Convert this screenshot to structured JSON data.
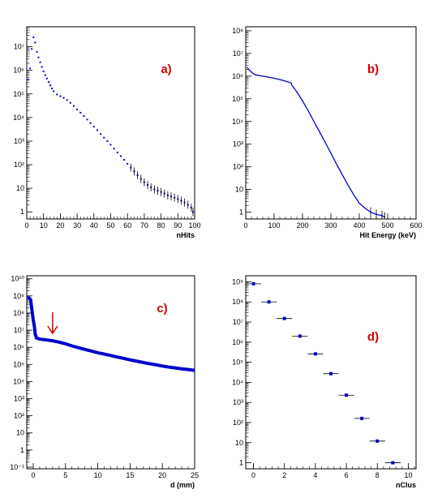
{
  "colors": {
    "marker": "#0000cc",
    "frame": "#000000",
    "label": "#d40000",
    "arrow": "#d40000",
    "error": "#000000"
  },
  "chart_data": [
    {
      "id": "a",
      "type": "scatter",
      "panel_label": "a)",
      "xlabel": "nHits",
      "ylabel": "",
      "xlim": [
        0,
        100
      ],
      "ylim": [
        0.5,
        70000000
      ],
      "yscale": "log",
      "xticks": [
        0,
        10,
        20,
        30,
        40,
        50,
        60,
        70,
        80,
        90,
        100
      ],
      "yticks": [
        1,
        10,
        100,
        1000,
        10000,
        100000,
        1000000,
        10000000
      ],
      "ytick_labels": [
        "1",
        "10",
        "10²",
        "10³",
        "10⁴",
        "10⁵",
        "10⁶",
        "10⁷"
      ],
      "series": [
        {
          "x": [
            1,
            2,
            3,
            4,
            5,
            6,
            7,
            8,
            9,
            10,
            11,
            12,
            13,
            14,
            15,
            16,
            18,
            20,
            22,
            24,
            26,
            28,
            30,
            32,
            34,
            36,
            38,
            40,
            42,
            44,
            46,
            48,
            50,
            52,
            54,
            56,
            58,
            60,
            62,
            64,
            66,
            68,
            70,
            72,
            74,
            76,
            78,
            80,
            82,
            84,
            86,
            88,
            90,
            92,
            94,
            96,
            98,
            99
          ],
          "y": [
            400000,
            1200000,
            8000000,
            25000000,
            15000000,
            6000000,
            3500000,
            2200000,
            1400000,
            900000,
            620000,
            450000,
            320000,
            230000,
            170000,
            130000,
            95000,
            80000,
            68000,
            55000,
            42000,
            31000,
            22000,
            16000,
            11500,
            8200,
            5800,
            4100,
            2900,
            2000,
            1400,
            1000,
            700,
            480,
            330,
            230,
            160,
            110,
            75,
            52,
            36,
            25,
            18,
            14,
            11,
            9,
            8,
            7,
            6,
            5,
            4.5,
            4,
            3.5,
            3,
            2.5,
            2,
            1.5,
            1
          ]
        }
      ]
    },
    {
      "id": "b",
      "type": "scatter",
      "panel_label": "b)",
      "xlabel": "Hit Energy (keV)",
      "ylabel": "",
      "xlim": [
        0,
        600
      ],
      "ylim": [
        0.5,
        150000000
      ],
      "yscale": "log",
      "xticks": [
        0,
        100,
        200,
        300,
        400,
        500,
        600
      ],
      "yticks": [
        1,
        10,
        100,
        1000,
        10000,
        100000,
        1000000,
        10000000,
        100000000
      ],
      "ytick_labels": [
        "1",
        "10",
        "10²",
        "10³",
        "10⁴",
        "10⁵",
        "10⁶",
        "10⁷",
        "10⁸"
      ],
      "series": [
        {
          "x": [
            5,
            10,
            20,
            30,
            40,
            50,
            60,
            70,
            80,
            100,
            120,
            140,
            160,
            162,
            170,
            180,
            190,
            200,
            220,
            240,
            260,
            280,
            300,
            320,
            340,
            360,
            380,
            400,
            420,
            440,
            460,
            480,
            490
          ],
          "y": [
            2500000,
            2000000,
            1500000,
            1200000,
            1100000,
            1050000,
            1000000,
            950000,
            900000,
            800000,
            700000,
            600000,
            500000,
            400000,
            300000,
            200000,
            130000,
            80000,
            30000,
            10000,
            3500,
            1200,
            400,
            130,
            45,
            16,
            6,
            2.5,
            1.5,
            1,
            0.8,
            0.7,
            0.6
          ]
        }
      ]
    },
    {
      "id": "c",
      "type": "scatter",
      "panel_label": "c)",
      "xlabel": "d (mm)",
      "ylabel": "",
      "xlim": [
        -1,
        25
      ],
      "ylim": [
        0.08,
        15000000000
      ],
      "yscale": "log",
      "xticks": [
        0,
        5,
        10,
        15,
        20,
        25
      ],
      "yticks": [
        0.1,
        1,
        10,
        100,
        1000,
        10000,
        100000,
        1000000,
        10000000,
        100000000,
        1000000000,
        10000000000
      ],
      "ytick_labels": [
        "10⁻¹",
        "1",
        "10",
        "10²",
        "10³",
        "10⁴",
        "10⁵",
        "10⁶",
        "10⁷",
        "10⁸",
        "10⁹",
        "10¹⁰"
      ],
      "series": [
        {
          "x": [
            -0.7,
            -0.4,
            -0.2,
            0,
            0.2,
            0.3,
            0.5,
            1,
            2,
            3,
            4,
            5,
            6,
            7,
            8,
            9,
            10,
            11,
            12,
            13,
            14,
            15,
            16,
            17,
            18,
            19,
            20,
            21,
            22,
            23,
            24,
            25
          ],
          "y": [
            800000000,
            600000000,
            150000000,
            40000000,
            15000000,
            6000000,
            3500000,
            3000000,
            2700000,
            2400000,
            2000000,
            1600000,
            1200000,
            950000,
            750000,
            600000,
            480000,
            400000,
            330000,
            270000,
            225000,
            185000,
            155000,
            130000,
            110000,
            95000,
            80000,
            70000,
            62000,
            55000,
            50000,
            45000
          ]
        }
      ]
    },
    {
      "id": "d",
      "type": "scatter",
      "panel_label": "d)",
      "xlabel": "nClus",
      "ylabel": "",
      "xlim": [
        -0.5,
        10.5
      ],
      "ylim": [
        0.5,
        2000000000
      ],
      "yscale": "log",
      "xticks": [
        0,
        2,
        4,
        6,
        8,
        10
      ],
      "yticks": [
        1,
        10,
        100,
        1000,
        10000,
        100000,
        1000000,
        10000000,
        100000000,
        1000000000
      ],
      "ytick_labels": [
        "1",
        "10",
        "10²",
        "10³",
        "10⁴",
        "10⁵",
        "10⁶",
        "10⁷",
        "10⁸",
        "10⁹"
      ],
      "series": [
        {
          "x": [
            0,
            1,
            2,
            3,
            4,
            5,
            6,
            7,
            8,
            9
          ],
          "y": [
            800000000,
            100000000,
            15000000,
            2000000,
            260000,
            27000,
            2300,
            160,
            12,
            1
          ]
        }
      ]
    }
  ]
}
